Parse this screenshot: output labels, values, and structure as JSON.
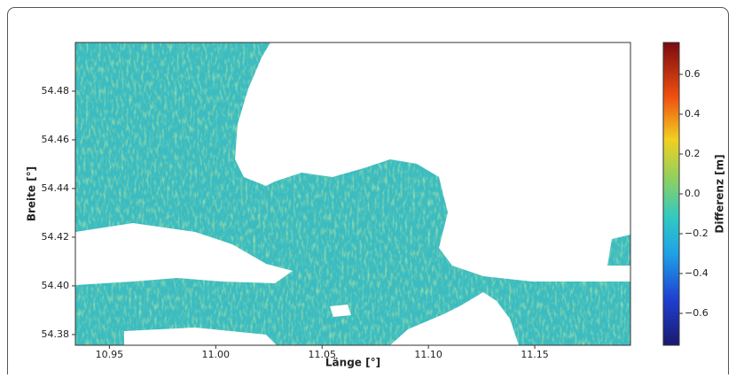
{
  "chart_data": {
    "type": "heatmap",
    "xlabel": "Länge [°]",
    "ylabel": "Breite [°]",
    "colorbar_label": "Differenz [m]",
    "colormap": "jet",
    "xlim": [
      10.934,
      11.195
    ],
    "ylim": [
      54.3756,
      54.5
    ],
    "xticks": [
      10.95,
      {
        "value": 11.0,
        "label": "11.00"
      },
      11.05,
      {
        "value": 11.1,
        "label": "11.10"
      },
      11.15
    ],
    "yticks": [
      54.38,
      {
        "value": 54.4,
        "label": "54.40"
      },
      54.42,
      54.44,
      54.46,
      54.48
    ],
    "clim": [
      -0.76,
      0.76
    ],
    "cticks": [
      {
        "value": -0.6,
        "label": "−0.6"
      },
      {
        "value": -0.4,
        "label": "−0.4"
      },
      {
        "value": -0.2,
        "label": "−0.2"
      },
      {
        "value": 0,
        "label": "0.0"
      },
      0.2,
      0.4,
      0.6
    ]
  }
}
